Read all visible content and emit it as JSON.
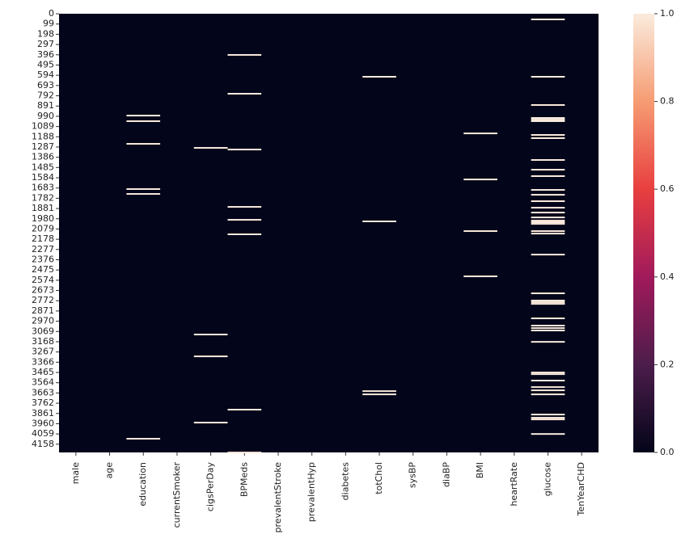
{
  "chart_data": {
    "type": "heatmap",
    "x": [
      "male",
      "age",
      "education",
      "currentSmoker",
      "cigsPerDay",
      "BPMeds",
      "prevalentStroke",
      "prevalentHyp",
      "diabetes",
      "totChol",
      "sysBP",
      "diaBP",
      "BMI",
      "heartRate",
      "glucose",
      "TenYearCHD"
    ],
    "ylim": [
      0,
      4238
    ],
    "yticks": [
      0,
      99,
      198,
      297,
      396,
      495,
      594,
      693,
      792,
      891,
      990,
      1089,
      1188,
      1287,
      1386,
      1485,
      1584,
      1683,
      1782,
      1881,
      1980,
      2079,
      2178,
      2277,
      2376,
      2475,
      2574,
      2673,
      2772,
      2871,
      2970,
      3069,
      3168,
      3267,
      3366,
      3465,
      3564,
      3663,
      3762,
      3861,
      3960,
      4059,
      4158
    ],
    "missing_rows": [
      [],
      [],
      [
        976,
        1030,
        1249,
        1686,
        1733,
        4098
      ],
      [],
      [
        1288,
        3091,
        3302,
        3942
      ],
      [
        390,
        765,
        1304,
        1858,
        1983,
        2123,
        3817,
        4231
      ],
      [],
      [],
      [],
      [
        601,
        1998,
        3638,
        3669
      ],
      [],
      [],
      [
        1148,
        1593,
        2092,
        2529
      ],
      [],
      [
        47,
        601,
        874,
        999,
        1015,
        1030,
        1163,
        1194,
        1405,
        1499,
        1561,
        1694,
        1741,
        1803,
        1866,
        1913,
        1960,
        1991,
        2006,
        2022,
        2092,
        2116,
        2319,
        2693,
        2763,
        2779,
        2795,
        2935,
        3005,
        3029,
        3052,
        3162,
        3458,
        3474,
        3536,
        3599,
        3630,
        3669,
        3864,
        3895,
        3911,
        4052
      ],
      []
    ],
    "clim": [
      0,
      1
    ],
    "colorbar_ticks": [
      {
        "value": 0,
        "label": "0.0"
      },
      {
        "value": 0.2,
        "label": "0.2"
      },
      {
        "value": 0.4,
        "label": "0.4"
      },
      {
        "value": 0.6,
        "label": "0.6"
      },
      {
        "value": 0.8,
        "label": "0.8"
      },
      {
        "value": 1,
        "label": "1.0"
      }
    ],
    "colormap": [
      "#03051a",
      "#4c1d4b",
      "#a11a5b",
      "#e83f3f",
      "#f69c73",
      "#faebdd"
    ]
  }
}
